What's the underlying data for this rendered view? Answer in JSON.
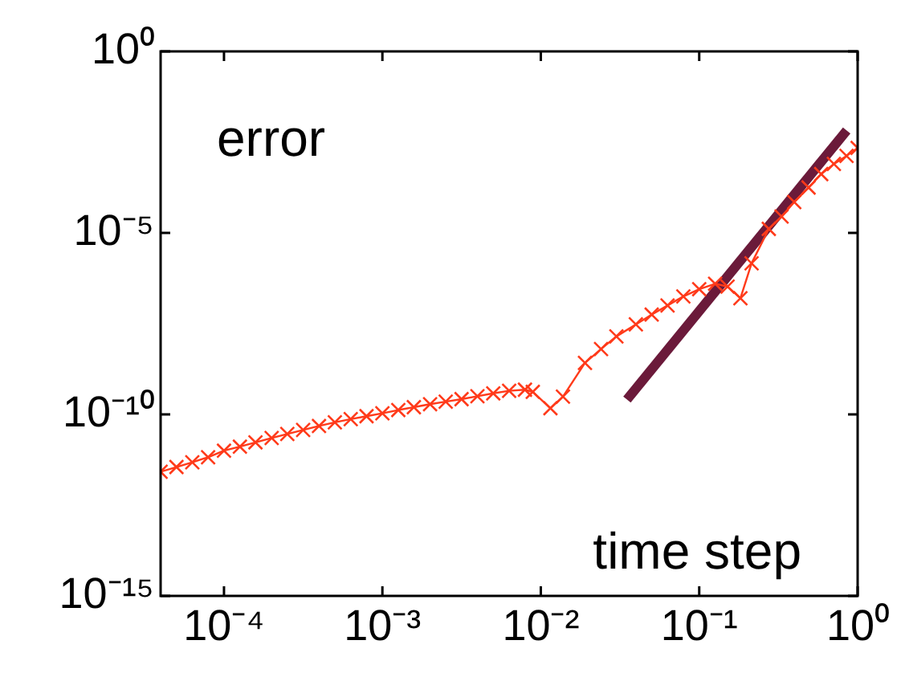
{
  "chart_data": {
    "type": "line",
    "xlabel": "time step",
    "ylabel": "error",
    "log": "xy",
    "xlim": [
      3.98e-05,
      1
    ],
    "ylim": [
      1e-15,
      1
    ],
    "xticks": [
      {
        "value": 0.0001,
        "label": "10⁻⁴"
      },
      {
        "value": 0.001,
        "label": "10⁻³"
      },
      {
        "value": 0.01,
        "label": "10⁻²"
      },
      {
        "value": 0.1,
        "label": "10⁻¹"
      },
      {
        "value": 1,
        "label": "10⁰"
      }
    ],
    "yticks": [
      {
        "value": 1e-15,
        "label": "10⁻¹⁵"
      },
      {
        "value": 1e-10,
        "label": "10⁻¹⁰"
      },
      {
        "value": 1e-05,
        "label": "10⁻⁵"
      },
      {
        "value": 1,
        "label": "10⁰"
      }
    ],
    "marker": "cross",
    "line_style": "solid",
    "legend": false,
    "series": [
      {
        "color": "#ff3a1a",
        "x": [
          3.98e-05,
          5.01e-05,
          6.31e-05,
          7.94e-05,
          0.0001,
          0.000126,
          0.000158,
          0.0002,
          0.000251,
          0.000316,
          0.000398,
          0.000501,
          0.000631,
          0.000794,
          0.001,
          0.00126,
          0.00158,
          0.002,
          0.00251,
          0.00316,
          0.00398,
          0.00501,
          0.00631,
          0.00794,
          0.0089,
          0.0115,
          0.0138,
          0.019,
          0.024,
          0.03,
          0.0398,
          0.0501,
          0.0631,
          0.0794,
          0.1,
          0.126,
          0.151,
          0.182,
          0.214,
          0.275,
          0.331,
          0.398,
          0.49,
          0.589,
          0.708,
          0.851,
          1
        ],
        "values": [
          2.63e-12,
          3.55e-12,
          4.79e-12,
          6.61e-12,
          1e-11,
          1.29e-11,
          1.7e-11,
          2.24e-11,
          2.88e-11,
          3.72e-11,
          4.79e-11,
          6.03e-11,
          7.41e-11,
          8.91e-11,
          1.07e-10,
          1.32e-10,
          1.58e-10,
          1.91e-10,
          2.24e-10,
          2.63e-10,
          3.16e-10,
          3.8e-10,
          4.47e-10,
          4.79e-10,
          4.17e-10,
          1.48e-10,
          3.09e-10,
          2.63e-09,
          6.31e-09,
          1.41e-08,
          3.02e-08,
          5.62e-08,
          1e-07,
          1.78e-07,
          2.82e-07,
          3.98e-07,
          3.31e-07,
          1.58e-07,
          1.45e-06,
          1.29e-05,
          2.82e-05,
          7.08e-05,
          0.000178,
          0.000417,
          0.000794,
          0.00132,
          0.00219
        ]
      },
      {
        "type": "line",
        "marker": "none",
        "color": "#6b1a3a",
        "x": [
          0.035,
          0.853
        ],
        "values": [
          2.57e-10,
          0.0066
        ]
      }
    ]
  }
}
